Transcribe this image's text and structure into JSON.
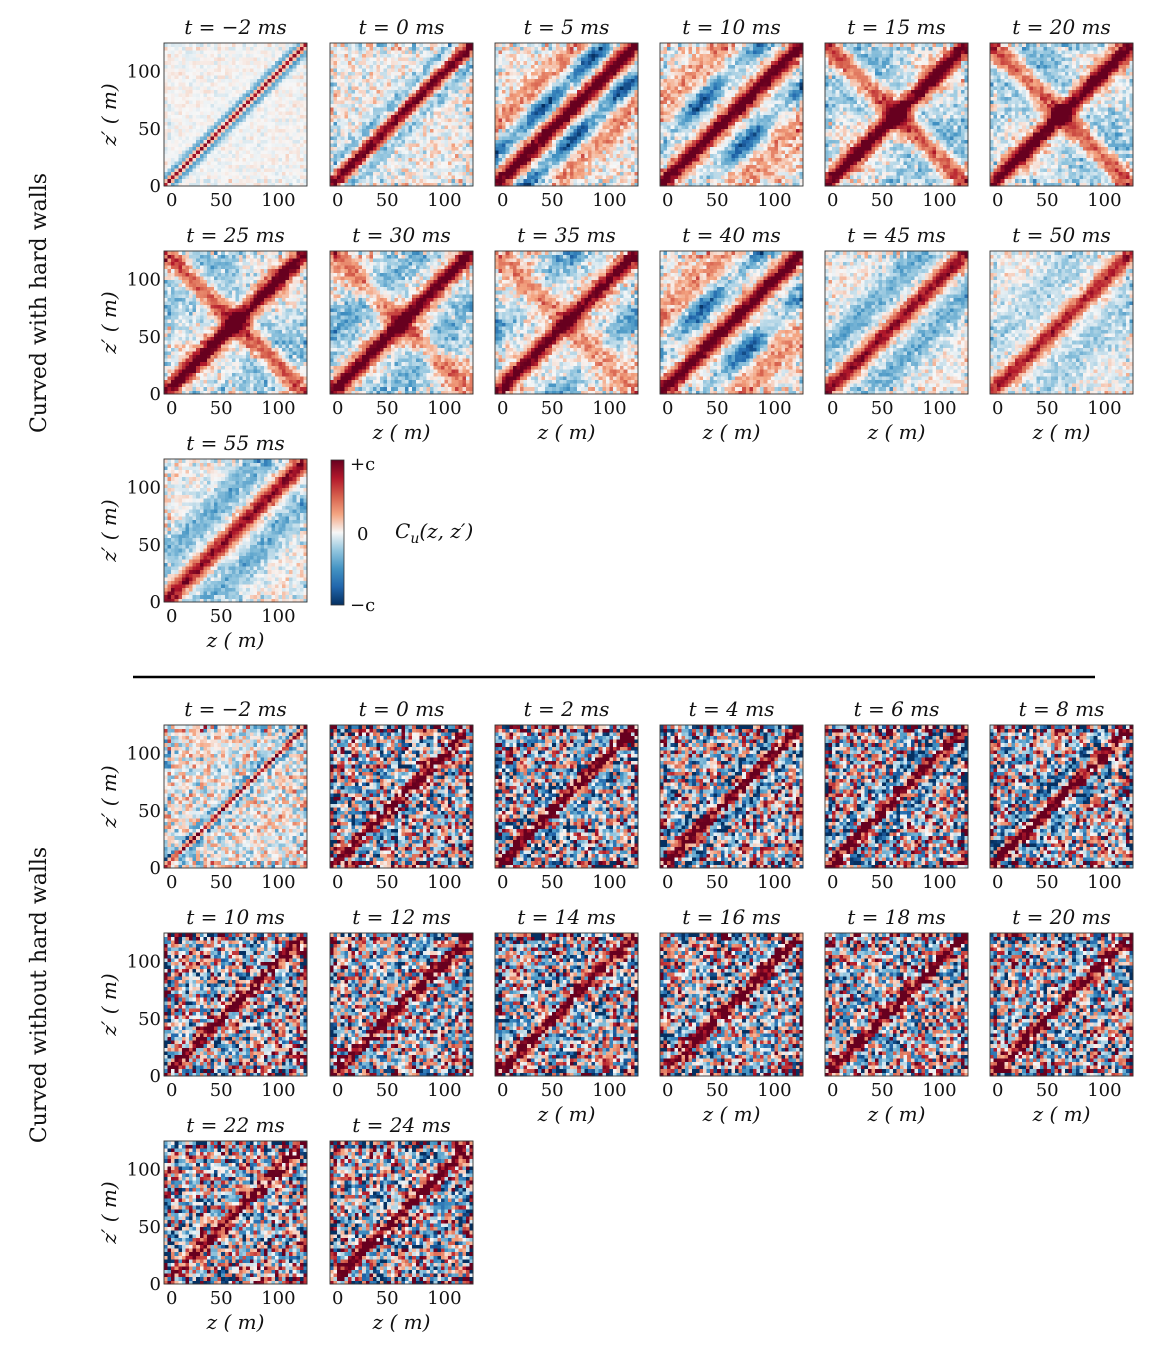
{
  "chart_data": {
    "type": "heatmap",
    "groups": [
      {
        "label": "Curved with hard walls",
        "noise": 0.18,
        "panels": [
          {
            "title": "t = −2 ms",
            "stage": "initial"
          },
          {
            "title": "t = 0 ms",
            "stage": "diag"
          },
          {
            "title": "t = 5 ms",
            "stage": "bands"
          },
          {
            "title": "t = 10 ms",
            "stage": "bands2"
          },
          {
            "title": "t = 15 ms",
            "stage": "cross"
          },
          {
            "title": "t = 20 ms",
            "stage": "cross"
          },
          {
            "title": "t = 25 ms",
            "stage": "cross"
          },
          {
            "title": "t = 30 ms",
            "stage": "crossweak"
          },
          {
            "title": "t = 35 ms",
            "stage": "mixed"
          },
          {
            "title": "t = 40 ms",
            "stage": "bands2"
          },
          {
            "title": "t = 45 ms",
            "stage": "fade"
          },
          {
            "title": "t = 50 ms",
            "stage": "fade2"
          },
          {
            "title": "t = 55 ms",
            "stage": "fade"
          }
        ]
      },
      {
        "label": "Curved without hard walls",
        "noise": 0.85,
        "panels": [
          {
            "title": "t = −2 ms",
            "stage": "initial"
          },
          {
            "title": "t = 0 ms",
            "stage": "noisy"
          },
          {
            "title": "t = 2 ms",
            "stage": "noisybands"
          },
          {
            "title": "t = 4 ms",
            "stage": "noisybands"
          },
          {
            "title": "t = 6 ms",
            "stage": "noisybands"
          },
          {
            "title": "t = 8 ms",
            "stage": "noisybands"
          },
          {
            "title": "t = 10 ms",
            "stage": "noisy"
          },
          {
            "title": "t = 12 ms",
            "stage": "noisy"
          },
          {
            "title": "t = 14 ms",
            "stage": "noisy"
          },
          {
            "title": "t = 16 ms",
            "stage": "noisy"
          },
          {
            "title": "t = 18 ms",
            "stage": "noisy"
          },
          {
            "title": "t = 20 ms",
            "stage": "noisy"
          },
          {
            "title": "t = 22 ms",
            "stage": "noisy"
          },
          {
            "title": "t = 24 ms",
            "stage": "noisy"
          }
        ]
      }
    ],
    "x_ticks": [
      "0",
      "50",
      "100"
    ],
    "y_ticks": [
      "0",
      "50",
      "100"
    ],
    "xlabel": "z (  m)",
    "ylabel": "z′ (  m)",
    "xlim": [
      0,
      125
    ],
    "ylim": [
      0,
      125
    ],
    "colorbar": {
      "label": "C_u(z, z′)",
      "label_main": "C",
      "label_sub": "u",
      "label_args": "(z, z′)",
      "ticks": [
        "+c",
        "0",
        "−c"
      ],
      "colors": [
        "#67001f",
        "#b2182b",
        "#d6604d",
        "#f4a582",
        "#f7f7f7",
        "#92c5de",
        "#4393c3",
        "#2166ac",
        "#053061"
      ]
    }
  }
}
